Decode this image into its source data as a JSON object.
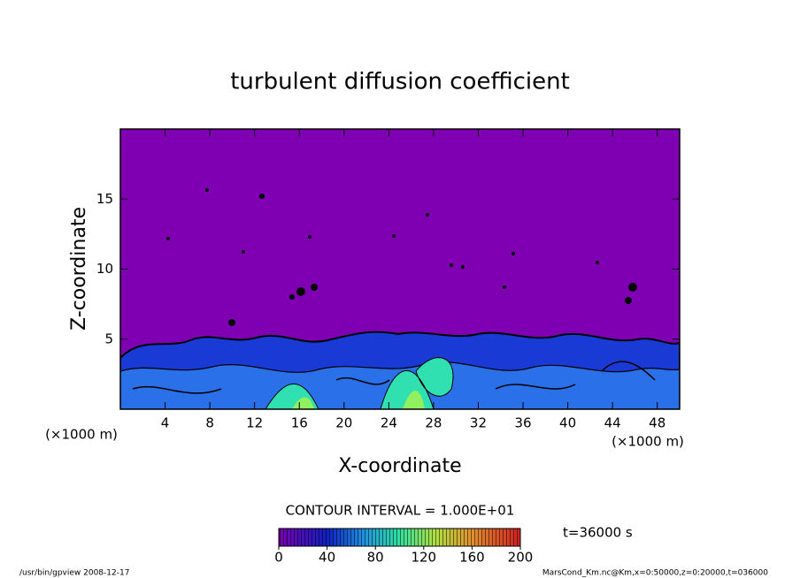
{
  "chart_data": {
    "type": "contour",
    "title": "turbulent diffusion coefficient",
    "x_label": "X-coordinate",
    "y_label": "Z-coordinate",
    "x_unit": "(×1000 m)",
    "y_unit": "(×1000 m)",
    "xlim": [
      0,
      50
    ],
    "ylim": [
      0,
      20
    ],
    "xticks": [
      4,
      8,
      12,
      16,
      20,
      24,
      28,
      32,
      36,
      40,
      44,
      48
    ],
    "yticks": [
      5,
      10,
      15
    ],
    "contour_interval_label": "CONTOUR INTERVAL = 1.000E+01",
    "clim": [
      0,
      200
    ],
    "cticks": [
      0,
      40,
      80,
      120,
      160,
      200
    ],
    "time_label": "t=36000 s",
    "footer_left": "/usr/bin/gpview  2008-12-17",
    "footer_right": "MarsCond_Km.nc@Km,x=0:50000,z=0:20000,t=036000"
  }
}
